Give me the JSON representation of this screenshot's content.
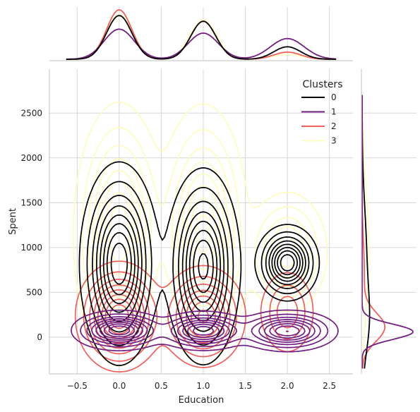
{
  "chart_data": {
    "type": "kde-jointplot",
    "x": {
      "label": "Education",
      "range": [
        -0.83,
        2.78
      ],
      "ticks": [
        -0.5,
        0.0,
        0.5,
        1.0,
        1.5,
        2.0,
        2.5
      ],
      "tick_labels": [
        "−0.5",
        "0.0",
        "0.5",
        "1.0",
        "1.5",
        "2.0",
        "2.5"
      ]
    },
    "y": {
      "label": "Spent",
      "range": [
        -410,
        2990
      ],
      "ticks": [
        0,
        500,
        1000,
        1500,
        2000,
        2500
      ],
      "tick_labels": [
        "0",
        "500",
        "1000",
        "1500",
        "2000",
        "2500"
      ]
    },
    "grid": true,
    "legend": {
      "title": "Clusters",
      "placement": "top-right",
      "entries": [
        "0",
        "1",
        "2",
        "3"
      ]
    },
    "series": [
      {
        "name": "0",
        "color": "#000004",
        "components": [
          {
            "x": 0.0,
            "y": 820,
            "sx": 0.2,
            "sy": 480,
            "w": 0.46
          },
          {
            "x": 1.0,
            "y": 790,
            "sx": 0.19,
            "sy": 470,
            "w": 0.4
          },
          {
            "x": 2.0,
            "y": 830,
            "sx": 0.16,
            "sy": 180,
            "w": 0.14
          }
        ],
        "marginal_x": [
          {
            "x": 0.0,
            "s": 0.15,
            "w": 0.46
          },
          {
            "x": 1.0,
            "s": 0.15,
            "w": 0.4
          },
          {
            "x": 2.0,
            "s": 0.16,
            "w": 0.14
          }
        ],
        "marginal_y": [
          {
            "y": 150,
            "s": 350,
            "w": 0.45
          },
          {
            "y": 900,
            "s": 550,
            "w": 0.55
          }
        ]
      },
      {
        "name": "1",
        "color": "#721f81",
        "components": [
          {
            "x": 0.0,
            "y": 75,
            "sx": 0.24,
            "sy": 95,
            "w": 0.35
          },
          {
            "x": 1.0,
            "y": 70,
            "sx": 0.24,
            "sy": 95,
            "w": 0.3
          },
          {
            "x": 2.0,
            "y": 70,
            "sx": 0.26,
            "sy": 100,
            "w": 0.35
          }
        ],
        "marginal_x": [
          {
            "x": 0.0,
            "s": 0.18,
            "w": 0.38
          },
          {
            "x": 1.0,
            "s": 0.18,
            "w": 0.33
          },
          {
            "x": 2.0,
            "s": 0.2,
            "w": 0.29
          }
        ],
        "marginal_y": [
          {
            "y": 60,
            "s": 85,
            "w": 1.0
          }
        ]
      },
      {
        "name": "2",
        "color": "#f1605d",
        "components": [
          {
            "x": 0.0,
            "y": 230,
            "sx": 0.22,
            "sy": 260,
            "w": 0.5
          },
          {
            "x": 1.0,
            "y": 230,
            "sx": 0.22,
            "sy": 250,
            "w": 0.38
          },
          {
            "x": 2.0,
            "y": 280,
            "sx": 0.16,
            "sy": 230,
            "w": 0.12
          }
        ],
        "marginal_x": [
          {
            "x": 0.0,
            "s": 0.15,
            "w": 0.52
          },
          {
            "x": 1.0,
            "s": 0.15,
            "w": 0.4
          },
          {
            "x": 2.0,
            "s": 0.16,
            "w": 0.08
          }
        ],
        "marginal_y": [
          {
            "y": 110,
            "s": 160,
            "w": 0.82
          },
          {
            "y": 700,
            "s": 350,
            "w": 0.18
          }
        ]
      },
      {
        "name": "3",
        "color": "#fcfdbf",
        "components": [
          {
            "x": 0.0,
            "y": 1150,
            "sx": 0.23,
            "sy": 620,
            "w": 0.45
          },
          {
            "x": 1.0,
            "y": 1150,
            "sx": 0.23,
            "sy": 620,
            "w": 0.42
          },
          {
            "x": 2.0,
            "y": 950,
            "sx": 0.22,
            "sy": 310,
            "w": 0.13
          }
        ],
        "marginal_x": [
          {
            "x": 0.0,
            "s": 0.16,
            "w": 0.5
          },
          {
            "x": 1.0,
            "s": 0.16,
            "w": 0.44
          },
          {
            "x": 2.0,
            "s": 0.18,
            "w": 0.06
          }
        ],
        "marginal_y": [
          {
            "y": 1000,
            "s": 650,
            "w": 1.0
          }
        ]
      }
    ]
  }
}
